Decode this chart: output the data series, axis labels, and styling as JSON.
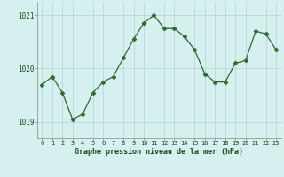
{
  "x": [
    0,
    1,
    2,
    3,
    4,
    5,
    6,
    7,
    8,
    9,
    10,
    11,
    12,
    13,
    14,
    15,
    16,
    17,
    18,
    19,
    20,
    21,
    22,
    23
  ],
  "y": [
    1019.7,
    1019.85,
    1019.55,
    1019.05,
    1019.15,
    1019.55,
    1019.75,
    1019.85,
    1020.2,
    1020.55,
    1020.85,
    1021.0,
    1020.75,
    1020.75,
    1020.6,
    1020.35,
    1019.9,
    1019.75,
    1019.75,
    1020.1,
    1020.15,
    1020.7,
    1020.65,
    1020.35
  ],
  "line_color": "#2d6a2d",
  "marker": "D",
  "marker_size": 2.5,
  "bg_color": "#d6efef",
  "grid_color": "#b8d8d8",
  "xlabel": "Graphe pression niveau de la mer (hPa)",
  "xlabel_color": "#1a4a1a",
  "tick_color": "#1a4a1a",
  "ylim": [
    1018.7,
    1021.25
  ],
  "yticks": [
    1019,
    1020,
    1021
  ],
  "xlim": [
    -0.5,
    23.5
  ],
  "xticks": [
    0,
    1,
    2,
    3,
    4,
    5,
    6,
    7,
    8,
    9,
    10,
    11,
    12,
    13,
    14,
    15,
    16,
    17,
    18,
    19,
    20,
    21,
    22,
    23
  ]
}
